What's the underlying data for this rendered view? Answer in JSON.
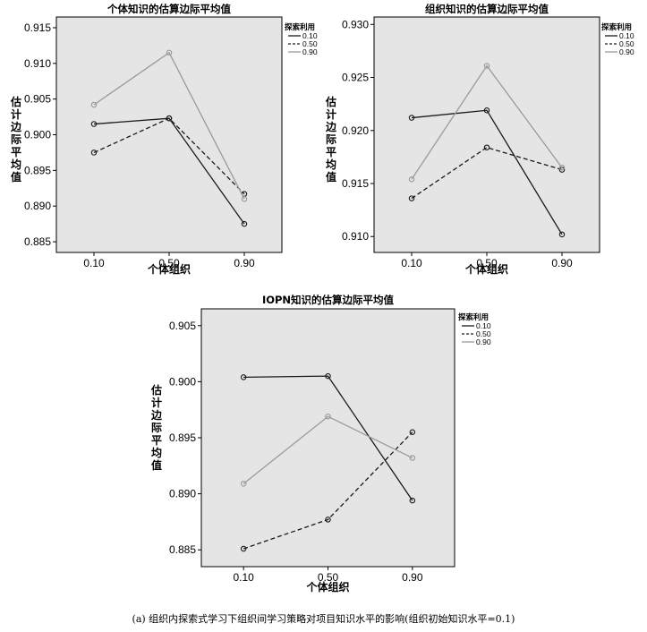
{
  "caption": "(a) 组织内探索式学习下组织间学习策略对项目知识水平的影响(组织初始知识水平=0.1)",
  "chart_data": [
    {
      "type": "line",
      "title": "个体知识的估算边际平均值",
      "xlabel": "个体组织",
      "ylabel": "估计边际平均值",
      "categories": [
        "0.10",
        "0.50",
        "0.90"
      ],
      "ylim": [
        0.8835,
        0.9165
      ],
      "yticks": [
        "0.885",
        "0.890",
        "0.895",
        "0.900",
        "0.905",
        "0.910",
        "0.915"
      ],
      "legend_title": "探索利用",
      "legend_placement": "top-right-outside",
      "series": [
        {
          "name": "0.10",
          "style": "solid",
          "color": "#1a1a1a",
          "values": [
            0.9015,
            0.9023,
            0.8875
          ]
        },
        {
          "name": "0.50",
          "style": "dashed",
          "color": "#1a1a1a",
          "values": [
            0.8975,
            0.9023,
            0.8917
          ]
        },
        {
          "name": "0.90",
          "style": "solid",
          "color": "#9a9a9a",
          "values": [
            0.9042,
            0.9115,
            0.891
          ]
        }
      ]
    },
    {
      "type": "line",
      "title": "组织知识的估算边际平均值",
      "xlabel": "个体组织",
      "ylabel": "估计边际平均值",
      "categories": [
        "0.10",
        "0.50",
        "0.90"
      ],
      "ylim": [
        0.9085,
        0.9307
      ],
      "yticks": [
        "0.910",
        "0.915",
        "0.920",
        "0.925",
        "0.930"
      ],
      "legend_title": "探索利用",
      "legend_placement": "top-right-outside",
      "series": [
        {
          "name": "0.10",
          "style": "solid",
          "color": "#1a1a1a",
          "values": [
            0.9212,
            0.9219,
            0.9102
          ]
        },
        {
          "name": "0.50",
          "style": "dashed",
          "color": "#1a1a1a",
          "values": [
            0.9136,
            0.9184,
            0.9163
          ]
        },
        {
          "name": "0.90",
          "style": "solid",
          "color": "#9a9a9a",
          "values": [
            0.9154,
            0.9261,
            0.9165
          ]
        }
      ]
    },
    {
      "type": "line",
      "title": "IOPN知识的估算边际平均值",
      "xlabel": "个体组织",
      "ylabel": "估计边际平均值",
      "categories": [
        "0.10",
        "0.50",
        "0.90"
      ],
      "ylim": [
        0.8835,
        0.9065
      ],
      "yticks": [
        "0.885",
        "0.890",
        "0.895",
        "0.900",
        "0.905"
      ],
      "legend_title": "探索利用",
      "legend_placement": "top-right-outside",
      "series": [
        {
          "name": "0.10",
          "style": "solid",
          "color": "#1a1a1a",
          "values": [
            0.9004,
            0.9005,
            0.8894
          ]
        },
        {
          "name": "0.50",
          "style": "dashed",
          "color": "#1a1a1a",
          "values": [
            0.8851,
            0.8877,
            0.8955
          ]
        },
        {
          "name": "0.90",
          "style": "solid",
          "color": "#9a9a9a",
          "values": [
            0.8909,
            0.8969,
            0.8932
          ]
        }
      ]
    }
  ]
}
